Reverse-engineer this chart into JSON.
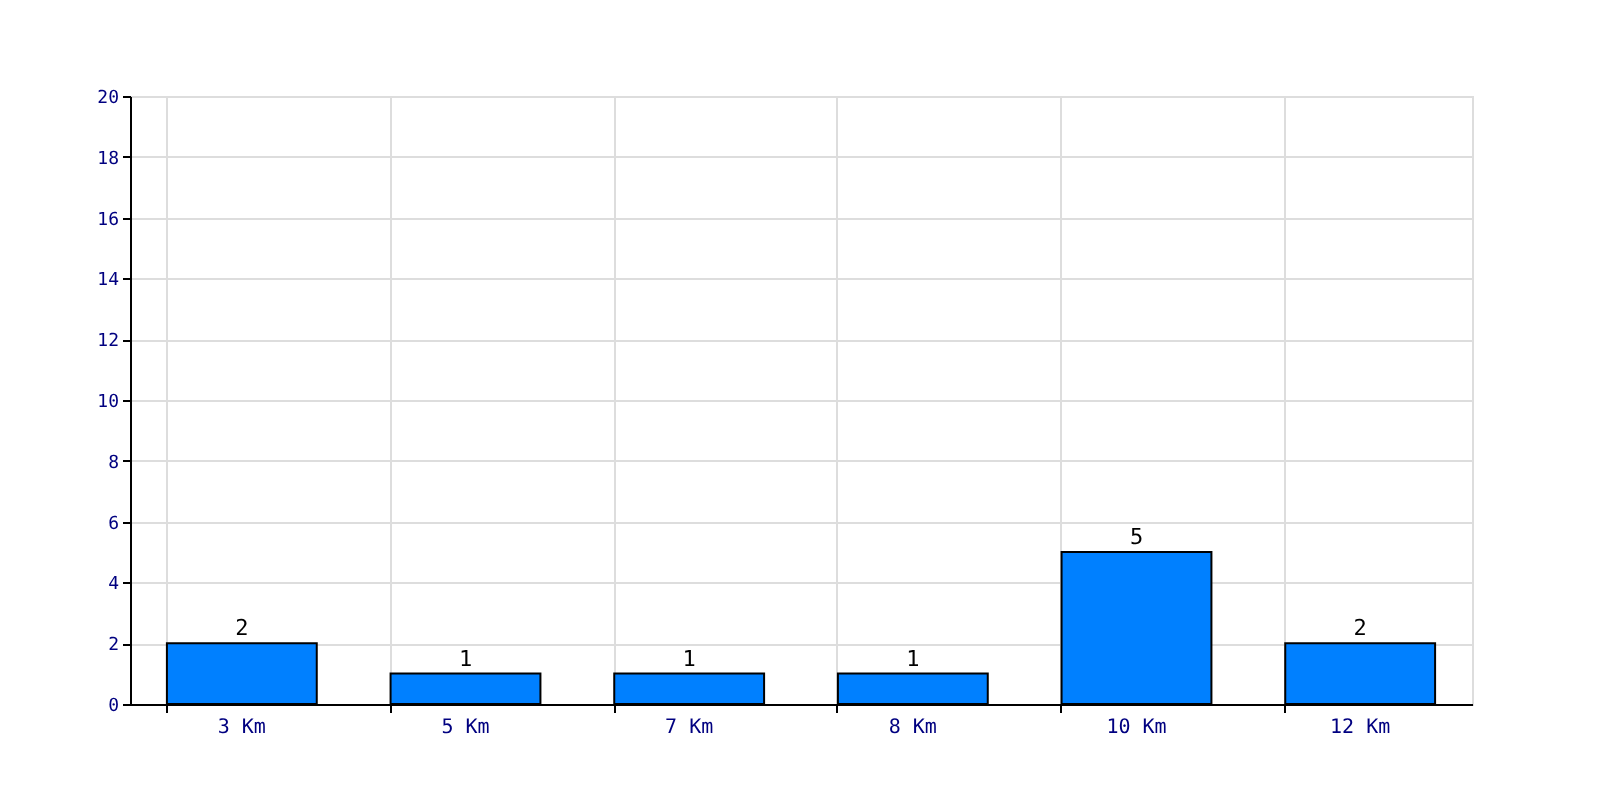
{
  "chart_data": {
    "type": "bar",
    "categories": [
      "3 Km",
      "5 Km",
      "7 Km",
      "8 Km",
      "10 Km",
      "12 Km"
    ],
    "values": [
      2,
      1,
      1,
      1,
      5,
      2
    ],
    "color": "#0080ff",
    "ylim": [
      0,
      20
    ],
    "yticks": [
      0,
      2,
      4,
      6,
      8,
      10,
      12,
      14,
      16,
      18,
      20
    ],
    "grid": true,
    "data_labels": true
  }
}
